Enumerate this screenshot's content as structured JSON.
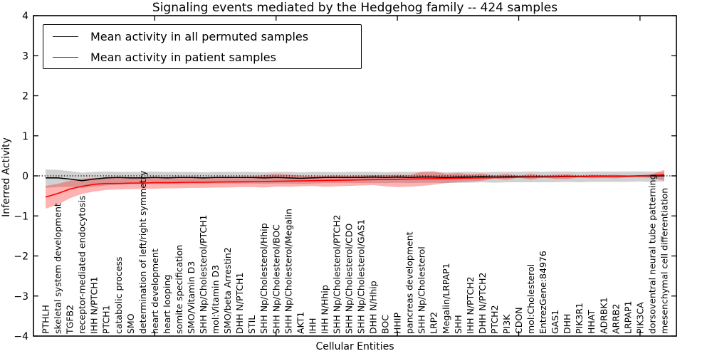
{
  "chart_data": {
    "type": "line",
    "title": "Signaling events mediated by the Hedgehog family -- 424 samples",
    "xlabel": "Cellular Entities",
    "ylabel": "Inferred Activity",
    "ylim": [
      -4,
      4
    ],
    "y_ticks": [
      4,
      3,
      2,
      1,
      0,
      -1,
      -2,
      -3,
      -4
    ],
    "x_major_ticks": [
      10,
      20,
      30,
      40,
      50
    ],
    "grid": false,
    "zero_line_style": "dotted",
    "legend_position": "upper left",
    "categories": [
      "PTHLH",
      "skeletal system development",
      "TGFB2",
      "receptor-mediated endocytosis",
      "IHH N/PTCH1",
      "PTCH1",
      "catabolic process",
      "SMO",
      "determination of left/right symmetry",
      "heart development",
      "heart looping",
      "somite specification",
      "SMO/Vitamin D3",
      "SHH Np/Cholesterol/PTCH1",
      "mol:Vitamin D3",
      "SMO/beta Arrestin2",
      "DHH N/PTCH1",
      "STIL",
      "SHH Np/Cholesterol/Hhip",
      "SHH Np/Cholesterol/BOC",
      "SHH Np/Cholesterol/Megalin",
      "AKT1",
      "IHH",
      "IHH N/Hhip",
      "SHH Np/Cholesterol/PTCH2",
      "SHH Np/Cholesterol/CDO",
      "SHH Np/Cholesterol/GAS1",
      "DHH N/Hhip",
      "BOC",
      "HHIP",
      "pancreas development",
      "SHH Np/Cholesterol",
      "LRP2",
      "Megalin/LRPAP1",
      "SHH",
      "IHH N/PTCH2",
      "DHH N/PTCH2",
      "PTCH2",
      "PI3K",
      "CDON",
      "mol:Cholesterol",
      "EntrezGene:84976",
      "GAS1",
      "DHH",
      "PIK3R1",
      "HHAT",
      "ADRBK1",
      "ARRB2",
      "LRPAP1",
      "PIK3CA",
      "dorsoventral neural tube patterning",
      "mesenchymal cell differentiation"
    ],
    "series": [
      {
        "name": "Mean activity in all permuted samples",
        "color": "#000000",
        "band_color": "rgba(0,0,0,0.18)",
        "values": [
          -0.05,
          -0.05,
          -0.08,
          -0.12,
          -0.08,
          -0.05,
          -0.04,
          -0.05,
          -0.05,
          -0.04,
          -0.05,
          -0.04,
          -0.04,
          -0.05,
          -0.04,
          -0.04,
          -0.04,
          -0.04,
          -0.05,
          -0.04,
          -0.05,
          -0.06,
          -0.05,
          -0.04,
          -0.04,
          -0.04,
          -0.04,
          -0.03,
          -0.04,
          -0.03,
          -0.04,
          -0.03,
          -0.03,
          -0.04,
          -0.03,
          -0.03,
          -0.02,
          -0.03,
          -0.02,
          -0.02,
          -0.02,
          -0.02,
          -0.02,
          -0.01,
          -0.02,
          -0.01,
          -0.01,
          -0.01,
          -0.01,
          0.0,
          0.0,
          0.0
        ],
        "band_upper": [
          0.16,
          0.15,
          0.12,
          0.08,
          0.1,
          0.11,
          0.1,
          0.1,
          0.1,
          0.11,
          0.1,
          0.1,
          0.1,
          0.09,
          0.1,
          0.1,
          0.1,
          0.1,
          0.09,
          0.1,
          0.1,
          0.09,
          0.1,
          0.1,
          0.09,
          0.1,
          0.1,
          0.1,
          0.09,
          0.1,
          0.1,
          0.1,
          0.09,
          0.09,
          0.1,
          0.1,
          0.09,
          0.1,
          0.1,
          0.1,
          0.11,
          0.1,
          0.11,
          0.11,
          0.1,
          0.11,
          0.11,
          0.11,
          0.11,
          0.11,
          0.11,
          0.1
        ],
        "band_lower": [
          -0.3,
          -0.28,
          -0.27,
          -0.3,
          -0.27,
          -0.24,
          -0.22,
          -0.21,
          -0.2,
          -0.2,
          -0.2,
          -0.2,
          -0.19,
          -0.2,
          -0.19,
          -0.19,
          -0.19,
          -0.19,
          -0.2,
          -0.19,
          -0.19,
          -0.2,
          -0.19,
          -0.18,
          -0.18,
          -0.18,
          -0.18,
          -0.18,
          -0.18,
          -0.17,
          -0.18,
          -0.17,
          -0.17,
          -0.18,
          -0.17,
          -0.17,
          -0.16,
          -0.17,
          -0.16,
          -0.16,
          -0.16,
          -0.16,
          -0.16,
          -0.15,
          -0.16,
          -0.15,
          -0.15,
          -0.15,
          -0.15,
          -0.14,
          -0.15,
          -0.14
        ]
      },
      {
        "name": "Mean activity in patient samples",
        "color": "#ff0000",
        "band_color": "rgba(255,0,0,0.30)",
        "values": [
          -0.53,
          -0.44,
          -0.33,
          -0.26,
          -0.21,
          -0.19,
          -0.19,
          -0.18,
          -0.18,
          -0.17,
          -0.17,
          -0.165,
          -0.16,
          -0.16,
          -0.155,
          -0.15,
          -0.15,
          -0.145,
          -0.14,
          -0.135,
          -0.13,
          -0.125,
          -0.12,
          -0.115,
          -0.11,
          -0.105,
          -0.1,
          -0.095,
          -0.09,
          -0.085,
          -0.08,
          -0.075,
          -0.07,
          -0.065,
          -0.06,
          -0.055,
          -0.05,
          -0.045,
          -0.04,
          -0.035,
          -0.03,
          -0.03,
          -0.025,
          -0.02,
          -0.02,
          -0.015,
          -0.01,
          -0.01,
          -0.005,
          0.0,
          0.01,
          0.03
        ],
        "band_upper": [
          -0.25,
          -0.2,
          -0.12,
          -0.07,
          -0.05,
          -0.04,
          -0.05,
          -0.04,
          -0.05,
          -0.04,
          -0.04,
          -0.04,
          -0.03,
          -0.04,
          -0.03,
          -0.02,
          -0.03,
          -0.02,
          0.02,
          0.05,
          0.03,
          0.01,
          -0.01,
          0.0,
          0.01,
          0.0,
          0.01,
          0.02,
          0.02,
          0.03,
          0.02,
          0.1,
          0.12,
          0.05,
          0.07,
          0.04,
          0.06,
          0.01,
          0.05,
          0.0,
          0.05,
          0.01,
          0.03,
          0.04,
          0.01,
          0.03,
          0.02,
          0.03,
          0.01,
          0.02,
          0.04,
          0.15
        ],
        "band_lower": [
          -0.82,
          -0.72,
          -0.56,
          -0.45,
          -0.39,
          -0.35,
          -0.34,
          -0.33,
          -0.32,
          -0.32,
          -0.31,
          -0.31,
          -0.3,
          -0.3,
          -0.29,
          -0.29,
          -0.28,
          -0.28,
          -0.29,
          -0.27,
          -0.27,
          -0.26,
          -0.25,
          -0.27,
          -0.26,
          -0.25,
          -0.24,
          -0.23,
          -0.26,
          -0.28,
          -0.27,
          -0.25,
          -0.22,
          -0.18,
          -0.16,
          -0.14,
          -0.12,
          -0.06,
          -0.1,
          -0.04,
          -0.09,
          -0.04,
          -0.07,
          -0.08,
          -0.04,
          -0.06,
          -0.05,
          -0.06,
          -0.03,
          -0.04,
          -0.05,
          -0.12
        ]
      }
    ]
  }
}
